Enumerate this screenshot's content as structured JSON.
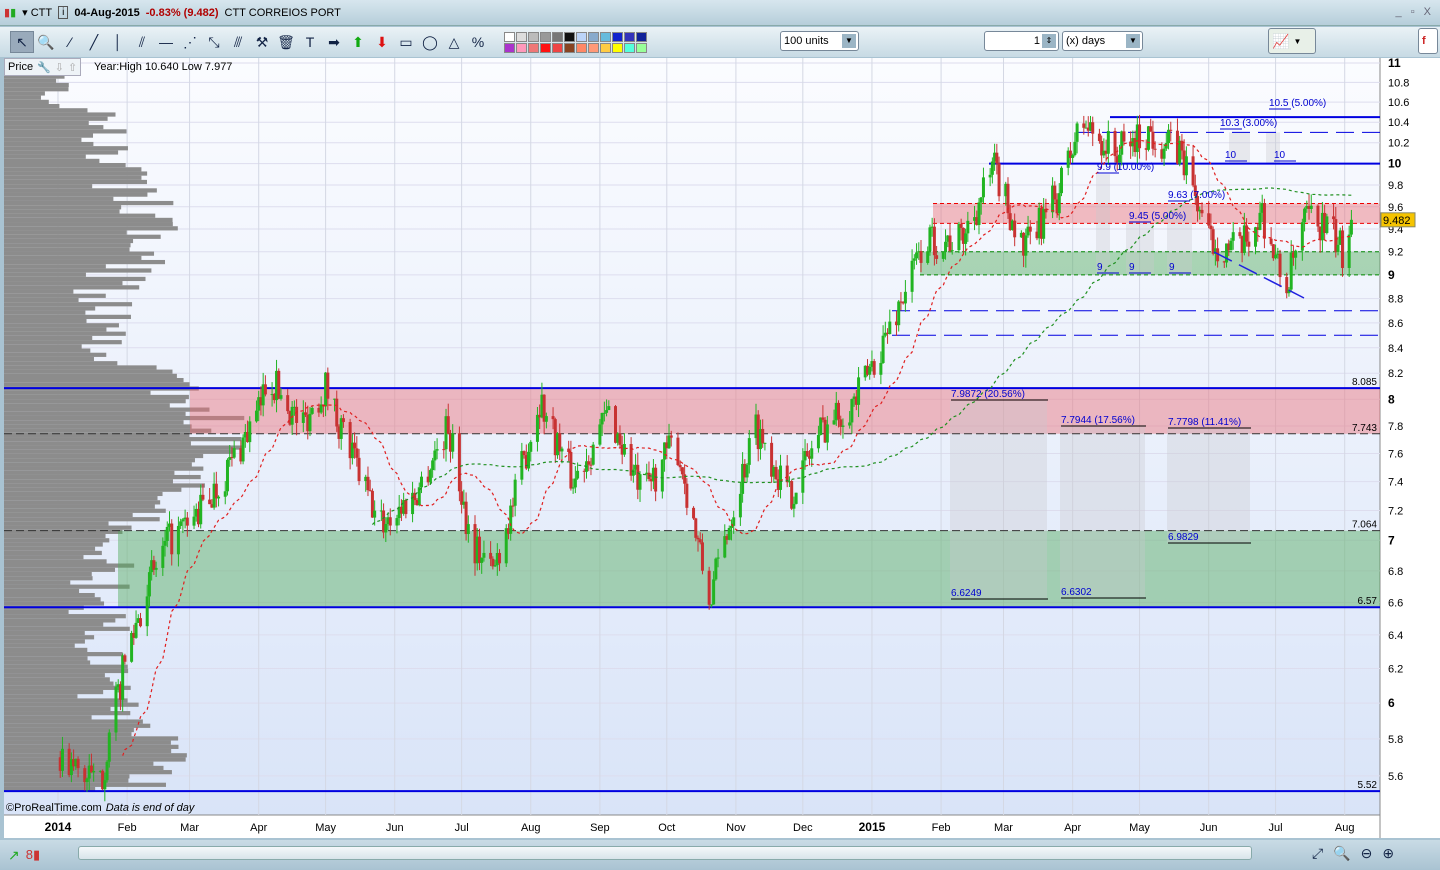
{
  "titlebar": {
    "symbol": "CTT",
    "date": "04-Aug-2015",
    "change": "-0.83% (9.482)",
    "name": "CTT CORREIOS PORT",
    "window_controls": "_ ▫ X"
  },
  "toolbar": {
    "tools": [
      "pointer",
      "zoom",
      "line",
      "ray",
      "vertical-line",
      "channel",
      "horizontal-line",
      "fan",
      "resize",
      "parallel",
      "properties",
      "delete",
      "text",
      "arrow-right",
      "arrow-up",
      "arrow-down",
      "rectangle",
      "ellipse",
      "triangle",
      "percent-retracement"
    ],
    "units": "100 units",
    "period_value": "1",
    "period_unit": "(x) days"
  },
  "colors": {
    "up": "#22b422",
    "down": "#c83232",
    "level": "#0000e0",
    "red_zone": "rgba(235,110,120,0.45)",
    "green_zone": "rgba(80,170,90,0.45)",
    "price_badge": "#f5c400"
  },
  "price_panel": {
    "label": "Price",
    "year_info": "Year:High 10.640 Low 7.977",
    "last_price": "9.482",
    "footnote": "©ProRealTime.com",
    "footnote_note": "Data is end of day"
  },
  "chart_data": {
    "type": "candlestick",
    "y_scale": "log",
    "ylim": [
      5.45,
      11.05
    ],
    "y_ticks": [
      "11",
      "10.8",
      "10.6",
      "10.4",
      "10.2",
      "10",
      "9.8",
      "9.6",
      "9.4",
      "9.2",
      "9",
      "8.8",
      "8.6",
      "8.4",
      "8.2",
      "8",
      "7.8",
      "7.6",
      "7.4",
      "7.2",
      "7",
      "6.8",
      "6.6",
      "6.4",
      "6.2",
      "6",
      "5.8",
      "5.6"
    ],
    "x_ticks": [
      "2014",
      "Feb",
      "Mar",
      "Apr",
      "May",
      "Jun",
      "Jul",
      "Aug",
      "Sep",
      "Oct",
      "Nov",
      "Dec",
      "2015",
      "Feb",
      "Mar",
      "Apr",
      "May",
      "Jun",
      "Jul",
      "Aug"
    ],
    "close_path": [
      [
        "2014-01-02",
        5.7
      ],
      [
        "2014-01-20",
        5.55
      ],
      [
        "2014-02-01",
        6.3
      ],
      [
        "2014-02-10",
        6.7
      ],
      [
        "2014-02-20",
        7.0
      ],
      [
        "2014-03-01",
        7.1
      ],
      [
        "2014-03-15",
        7.4
      ],
      [
        "2014-04-01",
        7.9
      ],
      [
        "2014-04-05",
        8.2
      ],
      [
        "2014-04-20",
        7.8
      ],
      [
        "2014-05-01",
        8.1
      ],
      [
        "2014-05-10",
        7.7
      ],
      [
        "2014-05-25",
        7.1
      ],
      [
        "2014-06-10",
        7.3
      ],
      [
        "2014-06-25",
        7.8
      ],
      [
        "2014-07-05",
        7.0
      ],
      [
        "2014-07-15",
        6.8
      ],
      [
        "2014-07-25",
        7.3
      ],
      [
        "2014-08-05",
        8.0
      ],
      [
        "2014-08-20",
        7.4
      ],
      [
        "2014-09-05",
        7.9
      ],
      [
        "2014-09-20",
        7.3
      ],
      [
        "2014-10-05",
        7.7
      ],
      [
        "2014-10-20",
        6.6
      ],
      [
        "2014-11-01",
        7.3
      ],
      [
        "2014-11-10",
        7.8
      ],
      [
        "2014-11-25",
        7.3
      ],
      [
        "2014-12-10",
        7.8
      ],
      [
        "2014-12-25",
        8.0
      ],
      [
        "2015-01-10",
        8.6
      ],
      [
        "2015-01-25",
        9.3
      ],
      [
        "2015-02-10",
        9.3
      ],
      [
        "2015-02-25",
        9.95
      ],
      [
        "2015-03-10",
        9.2
      ],
      [
        "2015-03-25",
        9.7
      ],
      [
        "2015-04-05",
        10.4
      ],
      [
        "2015-04-20",
        10.1
      ],
      [
        "2015-05-05",
        10.3
      ],
      [
        "2015-05-20",
        10.1
      ],
      [
        "2015-06-01",
        9.3
      ],
      [
        "2015-06-15",
        9.2
      ],
      [
        "2015-06-25",
        9.55
      ],
      [
        "2015-07-05",
        8.85
      ],
      [
        "2015-07-15",
        9.5
      ],
      [
        "2015-07-25",
        9.4
      ],
      [
        "2015-07-31",
        9.2
      ],
      [
        "2015-08-04",
        9.482
      ]
    ],
    "levels": [
      {
        "value": 10.45,
        "style": "solid"
      },
      {
        "value": 10.0,
        "style": "solid",
        "label": "10"
      },
      {
        "value": 8.085,
        "style": "solid",
        "label": "8.085"
      },
      {
        "value": 6.57,
        "style": "solid",
        "label": "6.57"
      },
      {
        "value": 5.52,
        "style": "solid",
        "label": "5.52"
      },
      {
        "value": 7.743,
        "style": "dashed",
        "label": "7.743"
      },
      {
        "value": 7.064,
        "style": "dashed",
        "label": "7.064"
      },
      {
        "value": 10.3,
        "style": "dashed"
      },
      {
        "value": 8.7,
        "style": "dashed"
      },
      {
        "value": 8.5,
        "style": "dashed"
      }
    ],
    "zones": [
      {
        "from": 7.743,
        "to": 8.085,
        "color": "red"
      },
      {
        "from": 6.57,
        "to": 7.064,
        "color": "green"
      },
      {
        "from": 9.45,
        "to": 9.63,
        "color": "red"
      },
      {
        "from": 9.0,
        "to": 9.2,
        "color": "green"
      }
    ],
    "annotations": [
      "10.5 (5.00%)",
      "10.3 (3.00%)",
      "10",
      "10",
      "9.9 (10.00%)",
      "9.63 (7.00%)",
      "9.45 (5.00%)",
      "9",
      "9",
      "9",
      "7.9872 (20.56%)",
      "7.7944 (17.56%)",
      "7.7798 (11.41%)",
      "6.9829",
      "6.6249",
      "6.6302"
    ]
  }
}
